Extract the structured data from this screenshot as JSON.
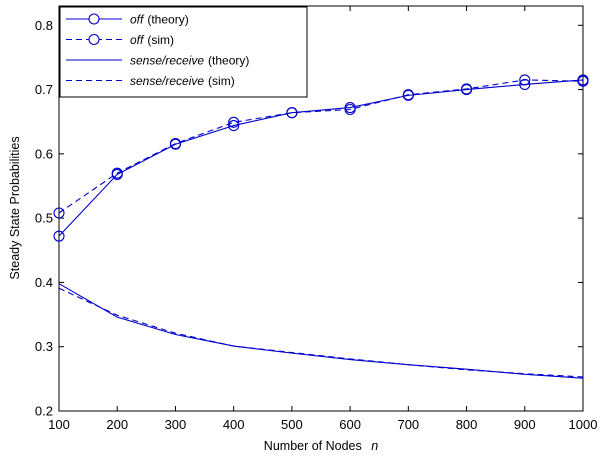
{
  "chart_data": {
    "type": "line",
    "title": "",
    "xlabel": "Number of Nodes",
    "xlabel_symbol": "n",
    "ylabel": "Steady State Probabilities",
    "xlim": [
      100,
      1000
    ],
    "ylim": [
      0.2,
      0.83
    ],
    "xticks": [
      100,
      200,
      300,
      400,
      500,
      600,
      700,
      800,
      900,
      1000
    ],
    "yticks": [
      0.2,
      0.3,
      0.4,
      0.5,
      0.6,
      0.7,
      0.8
    ],
    "grid": false,
    "legend_position": "top-left",
    "color": "#0000cc",
    "x": [
      100,
      200,
      300,
      400,
      500,
      600,
      700,
      800,
      900,
      1000
    ],
    "series": [
      {
        "name": "off",
        "name_suffix": "(theory)",
        "line": "solid",
        "marker": "circle",
        "values": [
          0.472,
          0.568,
          0.615,
          0.644,
          0.664,
          0.672,
          0.691,
          0.7,
          0.708,
          0.715
        ]
      },
      {
        "name": "off",
        "name_suffix": "(sim)",
        "line": "dashed",
        "marker": "circle",
        "values": [
          0.508,
          0.57,
          0.616,
          0.649,
          0.664,
          0.669,
          0.692,
          0.701,
          0.715,
          0.713
        ]
      },
      {
        "name": "sense/receive",
        "name_suffix": "(theory)",
        "line": "solid",
        "marker": "none",
        "values": [
          0.398,
          0.346,
          0.319,
          0.301,
          0.29,
          0.28,
          0.272,
          0.265,
          0.257,
          0.251
        ]
      },
      {
        "name": "sense/receive",
        "name_suffix": "(sim)",
        "line": "dashed",
        "marker": "none",
        "values": [
          0.391,
          0.349,
          0.321,
          0.301,
          0.291,
          0.281,
          0.272,
          0.264,
          0.258,
          0.253
        ]
      }
    ]
  }
}
